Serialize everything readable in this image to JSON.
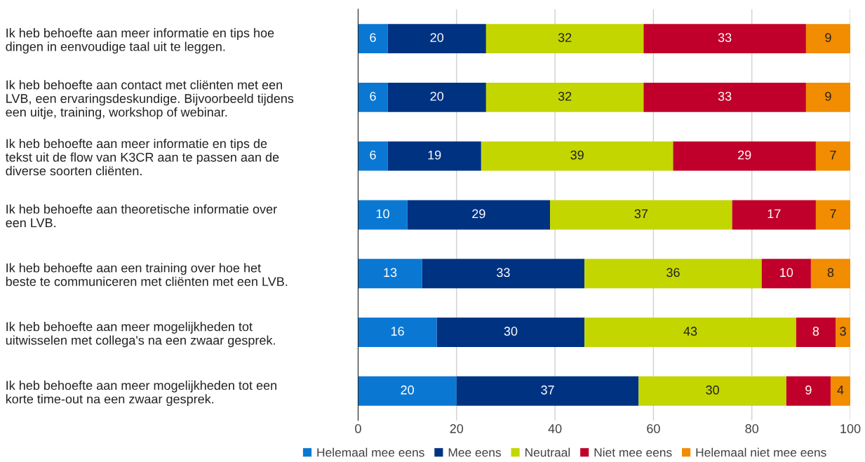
{
  "chart_data": {
    "type": "bar",
    "orientation": "horizontal",
    "stacked": true,
    "data_labels": true,
    "grid": "x",
    "legend": "bottom",
    "categories": [
      "Ik heb behoefte aan meer informatie en tips hoe\ndingen in eenvoudige taal uit te leggen.",
      "Ik heb behoefte aan contact met cliënten met een\nLVB, een ervaringsdeskundige. Bijvoorbeeld tijdens\neen uitje, training, workshop of webinar.",
      "Ik heb behoefte aan meer informatie en tips de\ntekst uit de flow van K3CR aan te passen aan de\ndiverse soorten cliënten.",
      "Ik heb behoefte aan theoretische informatie over\neen LVB.",
      "Ik heb behoefte aan een training over hoe het\nbeste te communiceren met cliënten met een LVB.",
      "Ik heb behoefte aan meer mogelijkheden tot\nuitwisselen met collega's na een zwaar gesprek.",
      "Ik heb behoefte aan meer mogelijkheden tot een\nkorte time-out na een zwaar gesprek."
    ],
    "series": [
      {
        "name": "Helemaal mee eens",
        "color": "#0a78d2",
        "values": [
          6,
          6,
          6,
          10,
          13,
          16,
          20
        ]
      },
      {
        "name": "Mee eens",
        "color": "#003282",
        "values": [
          20,
          20,
          19,
          29,
          33,
          30,
          37
        ]
      },
      {
        "name": "Neutraal",
        "color": "#c4d600",
        "values": [
          32,
          32,
          39,
          37,
          36,
          43,
          30
        ]
      },
      {
        "name": "Niet mee eens",
        "color": "#c0002a",
        "values": [
          33,
          33,
          29,
          17,
          10,
          8,
          9
        ]
      },
      {
        "name": "Helemaal niet mee eens",
        "color": "#f28c00",
        "values": [
          9,
          9,
          7,
          7,
          8,
          3,
          4
        ]
      }
    ],
    "xlim": [
      0,
      100
    ],
    "xticks": [
      0,
      20,
      40,
      60,
      80,
      100
    ]
  }
}
